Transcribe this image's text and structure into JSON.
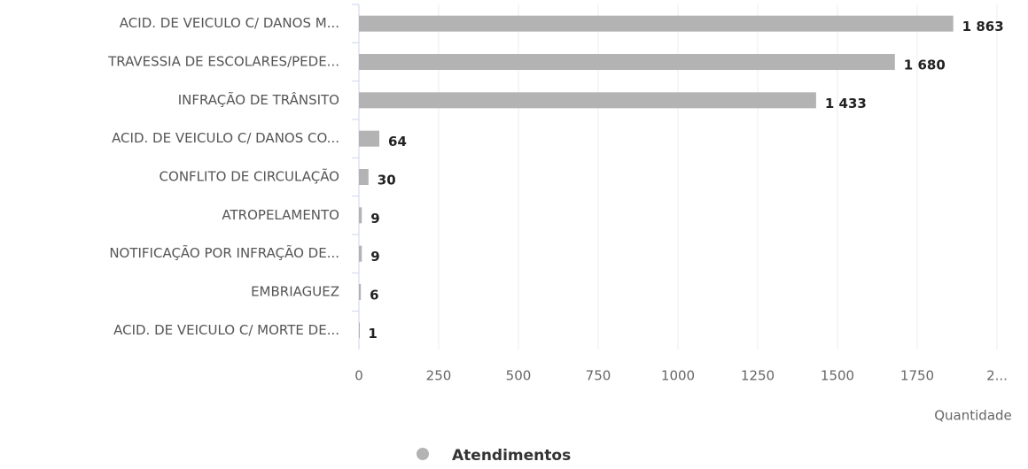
{
  "chart_data": {
    "type": "barh",
    "categories": [
      "ACID. DE VEICULO C/ DANOS M...",
      "TRAVESSIA DE ESCOLARES/PEDE...",
      "INFRAÇÃO DE TRÂNSITO",
      "ACID. DE VEICULO C/ DANOS CO...",
      "CONFLITO DE CIRCULAÇÃO",
      "ATROPELAMENTO",
      "NOTIFICAÇÃO POR INFRAÇÃO DE...",
      "EMBRIAGUEZ",
      "ACID. DE VEICULO C/ MORTE DE..."
    ],
    "series": [
      {
        "name": "Atendimentos",
        "color": "#b3b3b3",
        "values": [
          1863,
          1680,
          1433,
          64,
          30,
          9,
          9,
          6,
          1
        ],
        "value_labels": [
          "1 863",
          "1 680",
          "1 433",
          "64",
          "30",
          "9",
          "9",
          "6",
          "1"
        ]
      }
    ],
    "xlabel": "Quantidade",
    "xlim": [
      0,
      2000
    ],
    "xticks": [
      0,
      250,
      500,
      750,
      1000,
      1250,
      1500,
      1750,
      {
        "value": 2000,
        "label": "2..."
      }
    ],
    "grid": true
  }
}
